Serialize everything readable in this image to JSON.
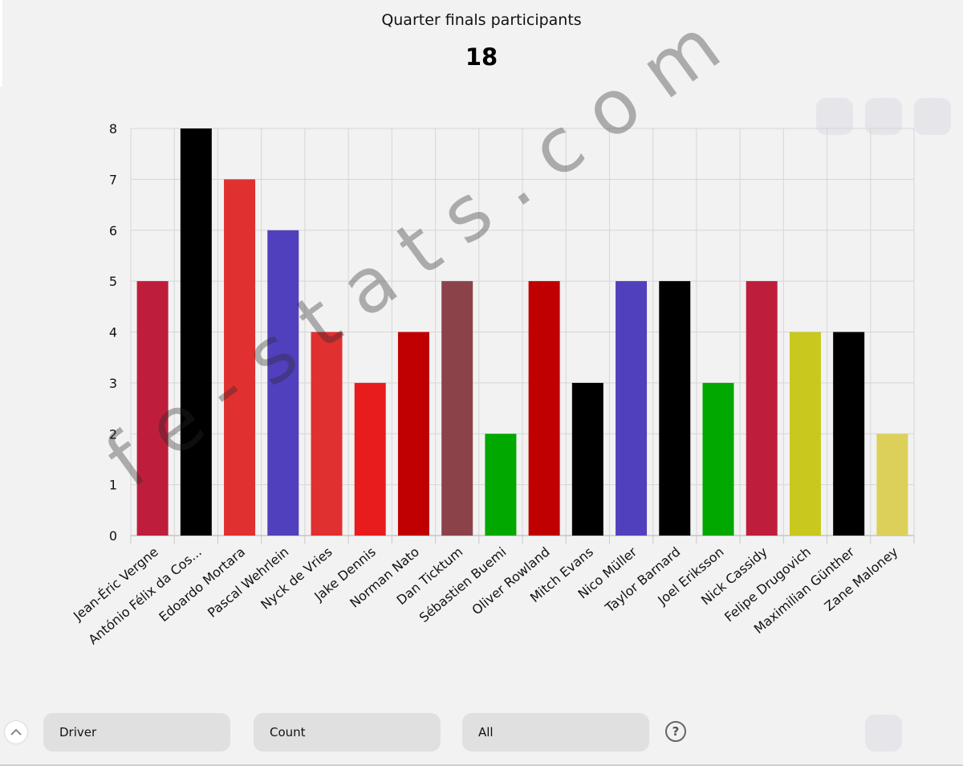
{
  "header": {
    "title": "Quarter finals participants",
    "kpi_value": "18"
  },
  "watermark": "fe-stats.com",
  "controls": {
    "dimension_label": "Driver",
    "measure_label": "Count",
    "filter_label": "All",
    "help_symbol": "?",
    "collapse_icon": "chevron-up-icon"
  },
  "chart_data": {
    "type": "bar",
    "categories": [
      "Jean-Éric Vergne",
      "António Félix da Cos...",
      "Edoardo Mortara",
      "Pascal Wehrlein",
      "Nyck de Vries",
      "Jake Dennis",
      "Norman Nato",
      "Dan Ticktum",
      "Sébastien Buemi",
      "Oliver Rowland",
      "Mitch Evans",
      "Nico Müller",
      "Taylor Barnard",
      "Joel Eriksson",
      "Nick Cassidy",
      "Felipe Drugovich",
      "Maximilian Günther",
      "Zane Maloney"
    ],
    "values": [
      5,
      8,
      7,
      6,
      4,
      3,
      4,
      5,
      2,
      5,
      3,
      5,
      5,
      3,
      5,
      4,
      4,
      2
    ],
    "colors": [
      "#be1e3c",
      "#000000",
      "#e03030",
      "#5040bd",
      "#e03030",
      "#e81c1c",
      "#c00000",
      "#8b4349",
      "#00a800",
      "#c00000",
      "#000000",
      "#5040bd",
      "#000000",
      "#00a800",
      "#be1e3c",
      "#c8c81e",
      "#000000",
      "#dcd05a"
    ],
    "yticks": [
      "0",
      "1",
      "2",
      "3",
      "4",
      "5",
      "6",
      "7",
      "8"
    ],
    "ylim": [
      0,
      8
    ],
    "grid": true
  }
}
